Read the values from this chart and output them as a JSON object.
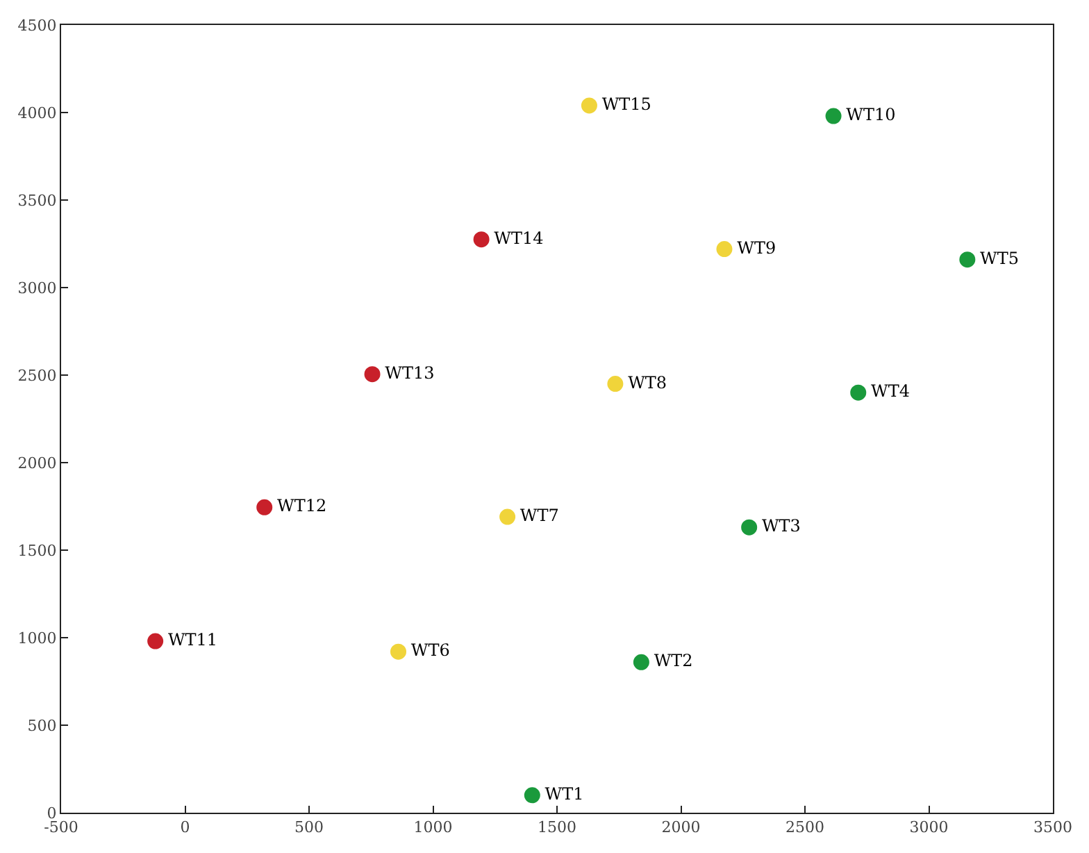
{
  "chart_data": {
    "type": "scatter",
    "marker": "circle",
    "xlim": [
      -500,
      3500
    ],
    "xticks": [
      -500,
      0,
      500,
      1000,
      1500,
      2000,
      2500,
      3000,
      3500
    ],
    "ylim": [
      0,
      4500
    ],
    "yticks": [
      0,
      500,
      1000,
      1500,
      2000,
      2500,
      3000,
      3500,
      4000,
      4500
    ],
    "series": [
      {
        "color": "#1a9a3c",
        "x": [
          1400,
          1840,
          2275,
          2715,
          3155,
          2615
        ],
        "values": [
          100,
          860,
          1630,
          2400,
          3160,
          3980
        ],
        "value_labels": [
          "WT1",
          "WT2",
          "WT3",
          "WT4",
          "WT5",
          "WT10"
        ]
      },
      {
        "color": "#f0d43a",
        "x": [
          860,
          1300,
          1735,
          2175,
          1630
        ],
        "values": [
          920,
          1690,
          2450,
          3220,
          4040
        ],
        "value_labels": [
          "WT6",
          "WT7",
          "WT8",
          "WT9",
          "WT15"
        ]
      },
      {
        "color": "#c8202a",
        "x": [
          -120,
          320,
          755,
          1195
        ],
        "values": [
          980,
          1745,
          2505,
          3275
        ],
        "value_labels": [
          "WT11",
          "WT12",
          "WT13",
          "WT14"
        ]
      }
    ]
  }
}
